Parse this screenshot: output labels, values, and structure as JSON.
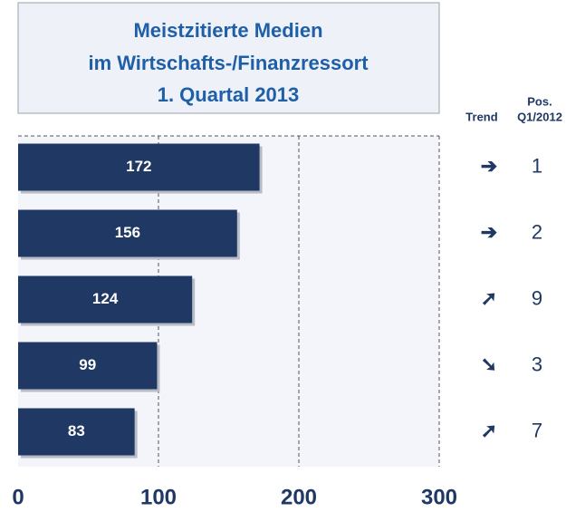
{
  "chart_data": {
    "type": "bar",
    "orientation": "horizontal",
    "title": [
      "Meistzitierte Medien",
      "im Wirtschafts-/Finanzressort",
      "1. Quartal 2013"
    ],
    "categories": [
      null,
      null,
      null,
      null,
      null
    ],
    "values": [
      172,
      156,
      124,
      99,
      83
    ],
    "color": "#1f3864",
    "xlim": [
      0,
      300
    ],
    "xticks": [
      0,
      100,
      200,
      300
    ],
    "grid": true,
    "trend_header": "Trend",
    "trend": [
      "➔",
      "➔",
      "➚",
      "➘",
      "➚"
    ],
    "position_header": [
      "Pos.",
      "Q1/2012"
    ],
    "positions": [
      1,
      2,
      9,
      3,
      7
    ]
  }
}
